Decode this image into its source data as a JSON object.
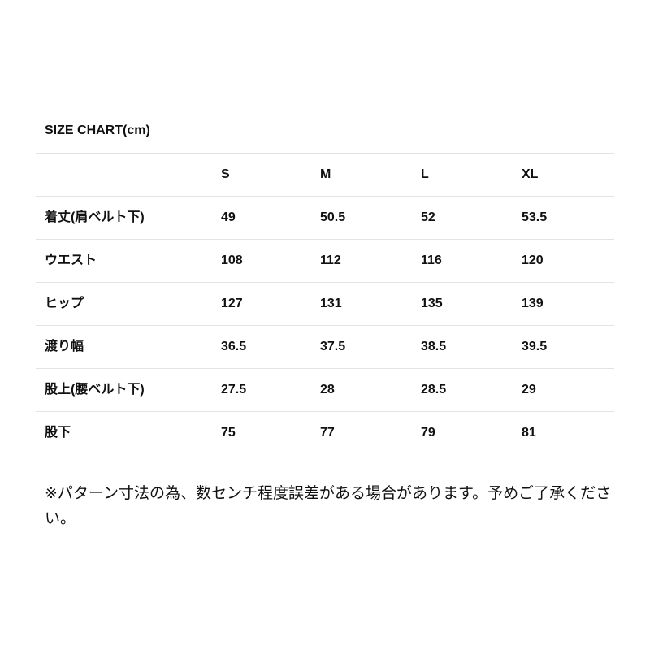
{
  "title": "SIZE CHART(cm)",
  "table": {
    "headers": [
      "",
      "S",
      "M",
      "L",
      "XL"
    ],
    "rows": [
      [
        "着丈(肩ベルト下)",
        "49",
        "50.5",
        "52",
        "53.5"
      ],
      [
        "ウエスト",
        "108",
        "112",
        "116",
        "120"
      ],
      [
        "ヒップ",
        "127",
        "131",
        "135",
        "139"
      ],
      [
        "渡り幅",
        "36.5",
        "37.5",
        "38.5",
        "39.5"
      ],
      [
        "股上(腰ベルト下)",
        "27.5",
        "28",
        "28.5",
        "29"
      ],
      [
        "股下",
        "75",
        "77",
        "79",
        "81"
      ]
    ]
  },
  "note": "※パターン寸法の為、数センチ程度誤差がある場合があります。予めご了承ください。"
}
